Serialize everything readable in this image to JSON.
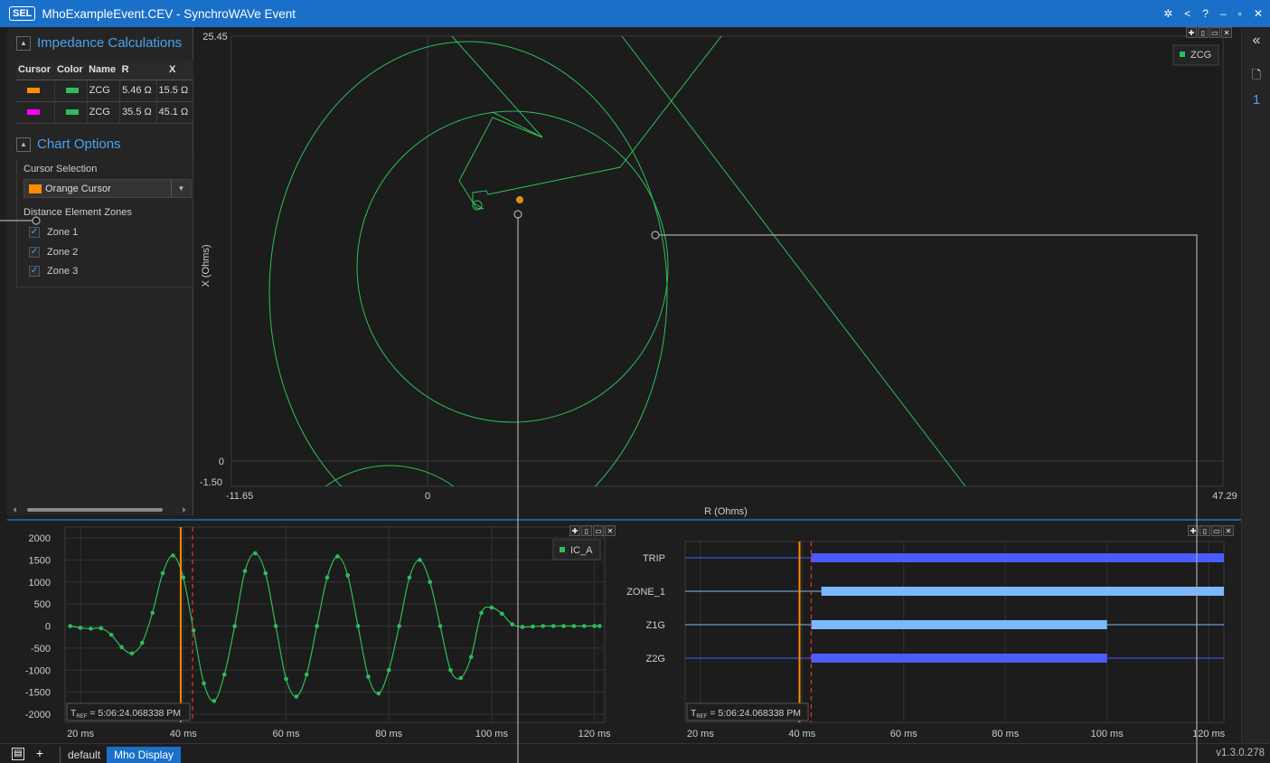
{
  "titlebar": {
    "badge": "SEL",
    "title": "MhoExampleEvent.CEV - SynchroWAVe Event",
    "icons": [
      "gear-icon",
      "share-icon",
      "help-icon",
      "minimize-icon",
      "restore-icon",
      "close-icon"
    ],
    "glyphs": [
      "✲",
      "<",
      "?",
      "–",
      "▫",
      "✕"
    ]
  },
  "impedance": {
    "title": "Impedance Calculations",
    "headers": [
      "Cursor",
      "Color",
      "Name",
      "R",
      "X"
    ],
    "rows": [
      {
        "cursor_color": "#ff8c00",
        "series_color": "#2ebd5a",
        "name": "ZCG",
        "r": "5.46 Ω",
        "x": "15.5 Ω"
      },
      {
        "cursor_color": "#ff00ff",
        "series_color": "#2ebd5a",
        "name": "ZCG",
        "r": "35.5 Ω",
        "x": "45.1 Ω"
      }
    ]
  },
  "chart_options": {
    "title": "Chart Options",
    "cursor_selection_label": "Cursor Selection",
    "cursor_selected": "Orange Cursor",
    "cursor_selected_color": "#ff8c00",
    "zones_label": "Distance Element Zones",
    "zones": [
      {
        "label": "Zone 1",
        "checked": true
      },
      {
        "label": "Zone 2",
        "checked": true
      },
      {
        "label": "Zone 3",
        "checked": true
      }
    ]
  },
  "mho_chart": {
    "legend": "ZCG",
    "series_color": "#2ebd5a",
    "x_min_label": "-11.65",
    "x_zero_label": "0",
    "x_max_label": "47.29",
    "y_max_label": "25.45",
    "y_zero_label": "0",
    "y_min_label": "-1.50",
    "xlabel": "R (Ohms)",
    "ylabel": "X (Ohms)"
  },
  "chart_data": [
    {
      "type": "line",
      "title": "",
      "xlabel": "",
      "ylabel": "",
      "x_ticks": [
        "20 ms",
        "40 ms",
        "60 ms",
        "80 ms",
        "100 ms",
        "120 ms"
      ],
      "y_ticks": [
        "2000",
        "1500",
        "1000",
        "500",
        "0",
        "-500",
        "-1000",
        "-1500",
        "-2000"
      ],
      "ylim": [
        -2000,
        2000
      ],
      "xlim": [
        17,
        122
      ],
      "series": [
        {
          "name": "IC_A",
          "color": "#2ebd5a",
          "x": [
            18,
            20,
            22,
            24,
            26,
            28,
            30,
            32,
            34,
            36,
            38,
            40,
            42,
            44,
            46,
            48,
            50,
            52,
            54,
            56,
            58,
            60,
            62,
            64,
            66,
            68,
            70,
            72,
            74,
            76,
            78,
            80,
            82,
            84,
            86,
            88,
            90,
            92,
            94,
            96,
            98,
            100,
            102,
            104,
            106,
            108,
            110,
            112,
            114,
            116,
            118,
            120,
            121
          ],
          "y": [
            0,
            -40,
            -60,
            -50,
            -200,
            -480,
            -620,
            -380,
            300,
            1200,
            1600,
            1100,
            -100,
            -1300,
            -1700,
            -1100,
            0,
            1250,
            1650,
            1200,
            0,
            -1200,
            -1600,
            -1100,
            0,
            1100,
            1580,
            1150,
            0,
            -1150,
            -1530,
            -1000,
            0,
            1100,
            1500,
            1000,
            0,
            -1000,
            -1180,
            -700,
            300,
            420,
            280,
            40,
            -20,
            -10,
            0,
            0,
            0,
            0,
            0,
            0,
            0
          ]
        }
      ],
      "cursors": [
        {
          "color": "#ff8c00",
          "x": 39.5,
          "style": "solid"
        },
        {
          "color": "#e03030",
          "x": 41.8,
          "style": "dashed"
        }
      ],
      "annotation": "5:06:24.068338 PM"
    },
    {
      "type": "bar",
      "title": "",
      "xlabel": "",
      "ylabel": "",
      "categories": [
        "TRIP",
        "ZONE_1",
        "Z1G",
        "Z2G"
      ],
      "x_ticks": [
        "20 ms",
        "40 ms",
        "60 ms",
        "80 ms",
        "100 ms",
        "120 ms"
      ],
      "xlim": [
        17,
        123
      ],
      "series": [
        {
          "name": "TRIP",
          "color": "#4b5cff",
          "start": 41.8,
          "end": 123
        },
        {
          "name": "ZONE_1",
          "color": "#7cb8ff",
          "start": 43.8,
          "end": 123
        },
        {
          "name": "Z1G",
          "color": "#7cb8ff",
          "start": 41.8,
          "end": 100
        },
        {
          "name": "Z2G",
          "color": "#4b5cff",
          "start": 41.8,
          "end": 100
        }
      ],
      "cursors": [
        {
          "color": "#ff8c00",
          "x": 39.5,
          "style": "solid"
        },
        {
          "color": "#e03030",
          "x": 41.8,
          "style": "dashed"
        }
      ],
      "annotation": "5:06:24.068338 PM"
    }
  ],
  "bottom": {
    "tabs": [
      "default",
      "Mho Display"
    ],
    "active_tab": "Mho Display",
    "version": "v1.3.0.278"
  },
  "right_strip": {
    "collapse_glyph": "«",
    "page_number": "1"
  }
}
